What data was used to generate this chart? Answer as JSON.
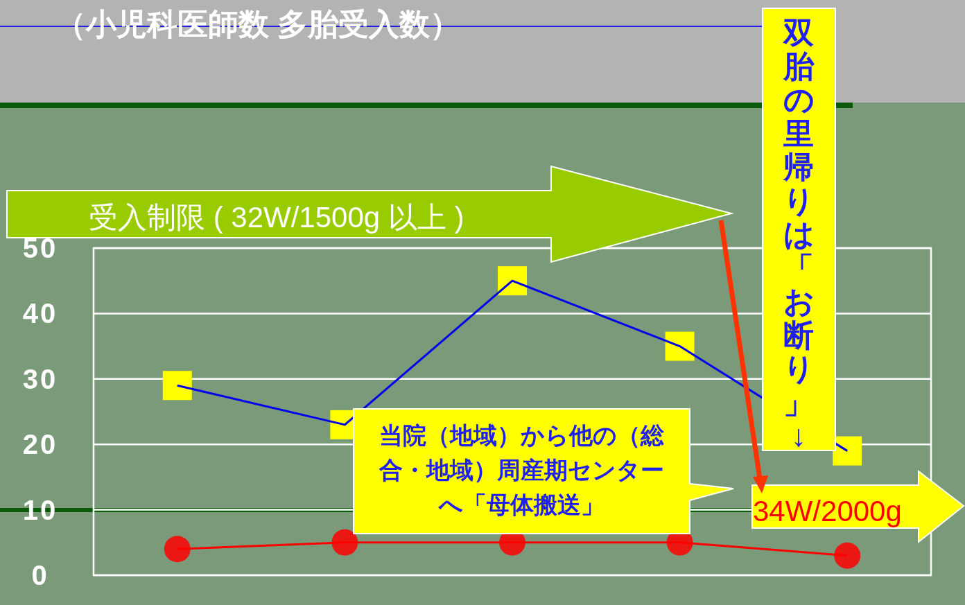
{
  "chart_data": {
    "type": "line",
    "title": "（小児科医師数 多胎受入数）",
    "categories": [
      null,
      null,
      null,
      null,
      null
    ],
    "series": [
      {
        "color": "#0000ee",
        "marker": "square",
        "values": [
          29,
          23,
          45,
          35,
          19
        ]
      },
      {
        "color": "#ff0000",
        "marker": "circle",
        "values": [
          4,
          5,
          5,
          5,
          3
        ]
      }
    ],
    "ylim": [
      0,
      50
    ],
    "yticks": [
      0,
      10,
      20,
      30,
      40,
      50
    ],
    "grid": "y",
    "tick_labels": "y",
    "annotations": [
      "受入制限 ( 32W/1500g 以上 )",
      "双胎の里帰りは「お断り」↓",
      "当院（地域）から他の（総合・地域）周産期センターへ「母体搬送」",
      "34W/2000g"
    ]
  }
}
